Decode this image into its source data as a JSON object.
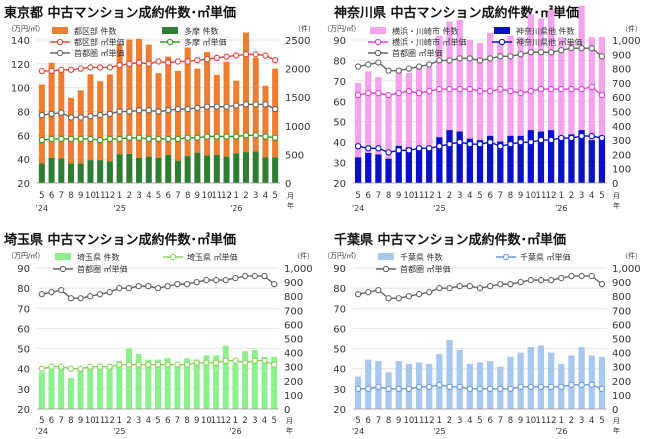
{
  "x_labels": [
    "5",
    "6",
    "7",
    "8",
    "9",
    "10",
    "11",
    "12",
    "1",
    "2",
    "3",
    "4",
    "5",
    "6",
    "7",
    "8",
    "9",
    "10",
    "11",
    "12",
    "1",
    "2",
    "3",
    "4",
    "5"
  ],
  "year_labels": [
    {
      "text": "'24",
      "index": 0
    },
    {
      "text": "'25",
      "index": 8
    },
    {
      "text": "'26",
      "index": 20
    }
  ],
  "colors": {
    "orange_bar": "#ED7D31",
    "green_bar": "#2E7D32",
    "red_line": "#E8423A",
    "green_line": "#3A9A2A",
    "gray_line": "#666666",
    "pink_bar": "#F5A3EE",
    "blue_bar": "#0A10C8",
    "magenta_line": "#E040E0",
    "light_green_bar": "#8CF08C",
    "light_green_line": "#8CD25A",
    "light_blue_bar": "#A8C8F0",
    "light_blue_line": "#6A9ADC"
  },
  "chart_data": [
    {
      "type": "bar",
      "title": "東京都 中古マンション成約件数･㎡単価",
      "left_unit": "（万円/㎡）",
      "right_unit": "（件）",
      "x_axis_label": "月\n年",
      "ylim_left": [
        20,
        140
      ],
      "left_ticks": [
        "20",
        "40",
        "60",
        "80",
        "100",
        "120",
        "140"
      ],
      "ylim_right": [
        0,
        2500
      ],
      "right_ticks": [
        "0",
        "500",
        "1000",
        "1500",
        "2000",
        "2500"
      ],
      "bar_series": [
        {
          "name": "都区部 件数",
          "color": "#ED7D31",
          "values": [
            1380,
            1660,
            1520,
            1150,
            1280,
            1500,
            1380,
            1520,
            1930,
            2000,
            2080,
            1960,
            1480,
            1720,
            1570,
            1900,
            1470,
            1810,
            1400,
            1660,
            1270,
            2090,
            1640,
            1250,
            1550
          ]
        },
        {
          "name": "多摩 件数",
          "color": "#2E7D32",
          "values": [
            340,
            440,
            430,
            340,
            340,
            400,
            400,
            380,
            500,
            510,
            440,
            460,
            440,
            490,
            390,
            470,
            530,
            480,
            490,
            460,
            520,
            540,
            550,
            450,
            450
          ]
        }
      ],
      "line_series": [
        {
          "name": "都区部 ㎡単価",
          "color": "#E8423A",
          "values": [
            114,
            114,
            115,
            115,
            116,
            117,
            117,
            117,
            119,
            120,
            121,
            120,
            122,
            121,
            122,
            122,
            123,
            124,
            125,
            126,
            127,
            128,
            128,
            127,
            123
          ]
        },
        {
          "name": "多摩 ㎡単価",
          "color": "#3A9A2A",
          "values": [
            56,
            57,
            57,
            57,
            57,
            57,
            56,
            57,
            57,
            58,
            58,
            57,
            57,
            57,
            57,
            58,
            58,
            59,
            59,
            59,
            59,
            60,
            60,
            59,
            58
          ]
        },
        {
          "name": "首都圏 ㎡単価",
          "color": "#666666",
          "values": [
            77,
            78,
            79,
            75,
            75,
            76,
            77,
            78,
            80,
            80,
            81,
            81,
            80,
            81,
            82,
            82,
            83,
            84,
            84,
            84,
            85,
            86,
            86,
            86,
            82
          ]
        }
      ]
    },
    {
      "type": "bar",
      "title": "神奈川県 中古マンション成約件数･㎡単価",
      "left_unit": "（万円/㎡）",
      "right_unit": "（件）",
      "x_axis_label": "月\n年",
      "ylim_left": [
        20,
        90
      ],
      "left_ticks": [
        "20",
        "30",
        "40",
        "50",
        "60",
        "70",
        "80",
        "90"
      ],
      "ylim_right": [
        0,
        1000
      ],
      "right_ticks": [
        "0",
        "100",
        "200",
        "300",
        "400",
        "500",
        "600",
        "700",
        "800",
        "900",
        "1,000"
      ],
      "bar_series": [
        {
          "name": "横浜・川崎市 件数",
          "color": "#F5A3EE",
          "values": [
            520,
            570,
            540,
            440,
            540,
            520,
            570,
            560,
            710,
            760,
            780,
            690,
            680,
            720,
            700,
            700,
            690,
            810,
            790,
            840,
            690,
            650,
            870,
            720,
            690
          ]
        },
        {
          "name": "神奈川県他 件数",
          "color": "#0A10C8",
          "values": [
            180,
            210,
            200,
            170,
            260,
            250,
            250,
            250,
            320,
            370,
            360,
            310,
            300,
            330,
            290,
            330,
            330,
            370,
            360,
            370,
            330,
            340,
            370,
            300,
            330
          ]
        }
      ],
      "line_series": [
        {
          "name": "横浜・川崎市 ㎡単価",
          "color": "#E040E0",
          "values": [
            63,
            64,
            64,
            63,
            64,
            65,
            64,
            65,
            66,
            66,
            66,
            66,
            65,
            65,
            66,
            65,
            64,
            65,
            66,
            66,
            66,
            66,
            66,
            67,
            63
          ]
        },
        {
          "name": "神奈川県他 ㎡単価",
          "color": "#0A10C8",
          "values": [
            38,
            37,
            37,
            35,
            36,
            36,
            37,
            37,
            38,
            39,
            40,
            39,
            39,
            40,
            38,
            39,
            40,
            40,
            41,
            41,
            42,
            42,
            43,
            43,
            42
          ]
        },
        {
          "name": "首都圏 ㎡単価",
          "color": "#666666",
          "values": [
            77,
            78,
            79,
            75,
            75,
            76,
            77,
            78,
            80,
            80,
            81,
            81,
            80,
            81,
            82,
            82,
            83,
            84,
            84,
            84,
            85,
            86,
            86,
            86,
            82
          ]
        }
      ]
    },
    {
      "type": "bar",
      "title": "埼玉県 中古マンション成約件数･㎡単価",
      "left_unit": "（万円/㎡）",
      "right_unit": "（件）",
      "x_axis_label": "月\n年",
      "ylim_left": [
        20,
        90
      ],
      "left_ticks": [
        "20",
        "30",
        "40",
        "50",
        "60",
        "70",
        "80",
        "90"
      ],
      "ylim_right": [
        0,
        1000
      ],
      "right_ticks": [
        "0",
        "100",
        "200",
        "300",
        "400",
        "500",
        "600",
        "700",
        "800",
        "900",
        "1,000"
      ],
      "bar_series": [
        {
          "name": "埼玉県 件数",
          "color": "#8CF08C",
          "values": [
            260,
            280,
            300,
            220,
            290,
            300,
            280,
            300,
            340,
            430,
            390,
            350,
            350,
            360,
            310,
            360,
            350,
            380,
            380,
            450,
            320,
            410,
            420,
            370,
            370
          ]
        }
      ],
      "line_series": [
        {
          "name": "埼玉県 ㎡単価",
          "color": "#8CD25A",
          "values": [
            40,
            41,
            41,
            40,
            40,
            41,
            41,
            41,
            42,
            42,
            42,
            42,
            42,
            42,
            42,
            42,
            43,
            43,
            43,
            44,
            44,
            43,
            44,
            44,
            42
          ]
        },
        {
          "name": "首都圏 ㎡単価",
          "color": "#666666",
          "values": [
            77,
            78,
            79,
            75,
            75,
            76,
            77,
            78,
            80,
            80,
            81,
            81,
            80,
            81,
            82,
            82,
            83,
            84,
            84,
            84,
            85,
            86,
            86,
            86,
            82
          ]
        }
      ]
    },
    {
      "type": "bar",
      "title": "千葉県 中古マンション成約件数･㎡単価",
      "left_unit": "（万円/㎡）",
      "right_unit": "（件）",
      "x_axis_label": "月\n年",
      "ylim_left": [
        20,
        90
      ],
      "left_ticks": [
        "20",
        "30",
        "40",
        "50",
        "60",
        "70",
        "80",
        "90"
      ],
      "ylim_right": [
        0,
        1000
      ],
      "right_ticks": [
        "0",
        "100",
        "200",
        "300",
        "400",
        "500",
        "600",
        "700",
        "800",
        "900",
        "1,000"
      ],
      "bar_series": [
        {
          "name": "千葉県 件数",
          "color": "#A8C8F0",
          "values": [
            230,
            350,
            340,
            260,
            340,
            320,
            330,
            320,
            390,
            490,
            420,
            320,
            330,
            340,
            300,
            370,
            400,
            440,
            450,
            400,
            320,
            380,
            440,
            380,
            370
          ]
        }
      ],
      "line_series": [
        {
          "name": "千葉県 ㎡単価",
          "color": "#6A9ADC",
          "values": [
            30,
            30,
            31,
            30,
            30,
            30,
            31,
            31,
            32,
            31,
            31,
            30,
            30,
            30,
            30,
            30,
            31,
            31,
            31,
            31,
            31,
            32,
            32,
            32,
            30
          ]
        },
        {
          "name": "首都圏 ㎡単価",
          "color": "#666666",
          "values": [
            77,
            78,
            79,
            75,
            75,
            76,
            77,
            78,
            80,
            80,
            81,
            81,
            80,
            81,
            82,
            82,
            83,
            84,
            84,
            84,
            85,
            86,
            86,
            86,
            82
          ]
        }
      ]
    }
  ]
}
